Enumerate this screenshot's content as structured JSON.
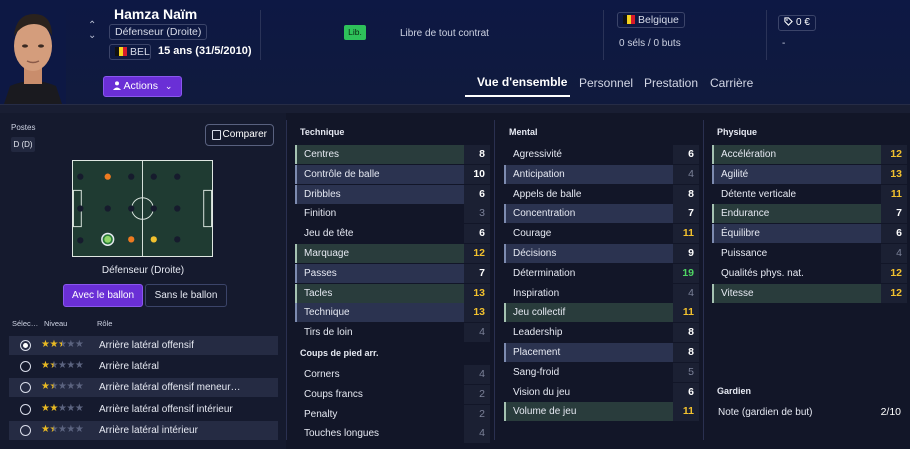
{
  "header": {
    "player_name": "Hamza Naïm",
    "position": "Défenseur (Droite)",
    "nationality_code": "BEL",
    "age": "15 ans (31/5/2010)",
    "contract_badge": "Lib.",
    "contract_text": "Libre de tout contrat",
    "country": "Belgique",
    "caps": "0 séls / 0 buts",
    "value": "0 €",
    "value_sub": "-",
    "actions_label": "Actions",
    "chevron_up": "⌃",
    "chevron_down": "⌄",
    "tabs": [
      "Vue d'ensemble",
      "Personnel",
      "Prestation",
      "Carrière"
    ],
    "active_tab": "Vue d'ensemble"
  },
  "positions": {
    "label": "Postes",
    "value": "D (D)",
    "compare_label": "Comparer",
    "selected_role": "Défenseur (Droite)",
    "toggle_on": "Avec le ballon",
    "toggle_off": "Sans le ballon"
  },
  "roles": {
    "headers": {
      "select": "Sélec…",
      "level": "Niveau",
      "role": "Rôle"
    },
    "items": [
      {
        "name": "Arrière latéral offensif",
        "stars": 2.5,
        "selected": true
      },
      {
        "name": "Arrière latéral",
        "stars": 1.5,
        "selected": false
      },
      {
        "name": "Arrière latéral offensif meneur…",
        "stars": 1.5,
        "selected": false
      },
      {
        "name": "Arrière latéral offensif intérieur",
        "stars": 2.0,
        "selected": false
      },
      {
        "name": "Arrière latéral intérieur",
        "stars": 1.5,
        "selected": false
      }
    ]
  },
  "technique": {
    "title": "Technique",
    "items": [
      {
        "name": "Centres",
        "value": "8",
        "style": "hl-green"
      },
      {
        "name": "Contrôle de balle",
        "value": "10",
        "style": "hl-blue"
      },
      {
        "name": "Dribbles",
        "value": "6",
        "style": "hl-blue"
      },
      {
        "name": "Finition",
        "value": "3",
        "style": "",
        "dim": true
      },
      {
        "name": "Jeu de tête",
        "value": "6",
        "style": ""
      },
      {
        "name": "Marquage",
        "value": "12",
        "style": "hl-green",
        "color": "yellow"
      },
      {
        "name": "Passes",
        "value": "7",
        "style": "hl-blue"
      },
      {
        "name": "Tacles",
        "value": "13",
        "style": "hl-green",
        "color": "yellow"
      },
      {
        "name": "Technique",
        "value": "13",
        "style": "hl-blue",
        "color": "yellow"
      },
      {
        "name": "Tirs de loin",
        "value": "4",
        "style": "",
        "dim": true
      }
    ]
  },
  "set_pieces": {
    "title": "Coups de pied arr.",
    "items": [
      {
        "name": "Corners",
        "value": "4",
        "style": "",
        "dim": true
      },
      {
        "name": "Coups francs",
        "value": "2",
        "style": "",
        "dim": true
      },
      {
        "name": "Penalty",
        "value": "2",
        "style": "",
        "dim": true
      },
      {
        "name": "Touches longues",
        "value": "4",
        "style": "",
        "dim": true
      }
    ]
  },
  "mental": {
    "title": "Mental",
    "items": [
      {
        "name": "Agressivité",
        "value": "6",
        "style": ""
      },
      {
        "name": "Anticipation",
        "value": "4",
        "style": "hl-blue",
        "dim": true
      },
      {
        "name": "Appels de balle",
        "value": "8",
        "style": ""
      },
      {
        "name": "Concentration",
        "value": "7",
        "style": "hl-blue"
      },
      {
        "name": "Courage",
        "value": "11",
        "style": "",
        "color": "yellow"
      },
      {
        "name": "Décisions",
        "value": "9",
        "style": "hl-blue"
      },
      {
        "name": "Détermination",
        "value": "19",
        "style": "",
        "color": "green"
      },
      {
        "name": "Inspiration",
        "value": "4",
        "style": "",
        "dim": true
      },
      {
        "name": "Jeu collectif",
        "value": "11",
        "style": "hl-green",
        "color": "yellow"
      },
      {
        "name": "Leadership",
        "value": "8",
        "style": ""
      },
      {
        "name": "Placement",
        "value": "8",
        "style": "hl-blue"
      },
      {
        "name": "Sang-froid",
        "value": "5",
        "style": "",
        "dim": true
      },
      {
        "name": "Vision du jeu",
        "value": "6",
        "style": ""
      },
      {
        "name": "Volume de jeu",
        "value": "11",
        "style": "hl-green",
        "color": "yellow"
      }
    ]
  },
  "physique": {
    "title": "Physique",
    "items": [
      {
        "name": "Accélération",
        "value": "12",
        "style": "hl-green",
        "color": "yellow"
      },
      {
        "name": "Agilité",
        "value": "13",
        "style": "hl-blue",
        "color": "yellow"
      },
      {
        "name": "Détente verticale",
        "value": "11",
        "style": "",
        "color": "yellow"
      },
      {
        "name": "Endurance",
        "value": "7",
        "style": "hl-green"
      },
      {
        "name": "Équilibre",
        "value": "6",
        "style": "hl-blue"
      },
      {
        "name": "Puissance",
        "value": "4",
        "style": "",
        "dim": true
      },
      {
        "name": "Qualités phys. nat.",
        "value": "12",
        "style": "",
        "color": "yellow"
      },
      {
        "name": "Vitesse",
        "value": "12",
        "style": "hl-green",
        "color": "yellow"
      }
    ]
  },
  "goalkeeper": {
    "title": "Gardien",
    "label": "Note (gardien de but)",
    "value": "2/10"
  },
  "colors": {
    "accent": "#6a2fd6",
    "highlight_yellow": "#f2c12e",
    "highlight_green": "#4fd664",
    "badge_green": "#2ec15a",
    "pitch": "#1f3b32"
  }
}
